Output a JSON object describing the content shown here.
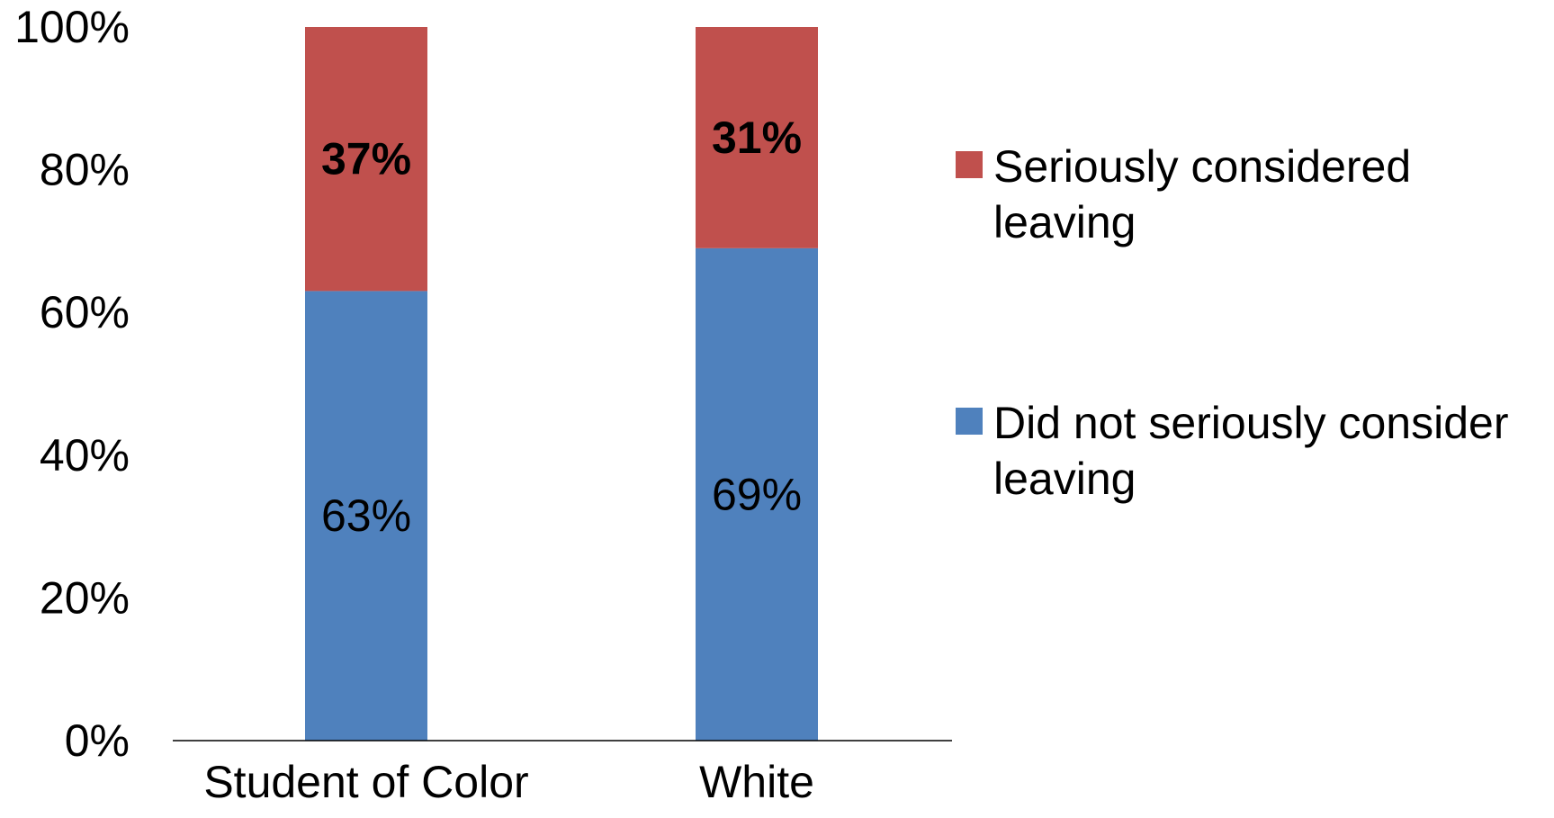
{
  "chart_data": {
    "type": "bar",
    "stacked": true,
    "categories": [
      "Student of Color",
      "White"
    ],
    "series": [
      {
        "name": "Did not seriously consider leaving",
        "values": [
          63,
          69
        ],
        "labels": [
          "63%",
          "69%"
        ],
        "color": "#4F81BD",
        "label_bold": false
      },
      {
        "name": "Seriously considered leaving",
        "values": [
          37,
          31
        ],
        "labels": [
          "37%",
          "31%"
        ],
        "color": "#C0504D",
        "label_bold": true
      }
    ],
    "y_ticks": [
      "0%",
      "20%",
      "40%",
      "60%",
      "80%",
      "100%"
    ],
    "ylim": [
      0,
      100
    ],
    "title": "",
    "xlabel": "",
    "ylabel": "",
    "grid": false,
    "legend": {
      "position": "right",
      "entries": [
        {
          "series": 1,
          "lines": [
            "Seriously considered",
            "leaving"
          ]
        },
        {
          "series": 0,
          "lines": [
            "Did not seriously consider",
            "leaving"
          ]
        }
      ]
    }
  }
}
